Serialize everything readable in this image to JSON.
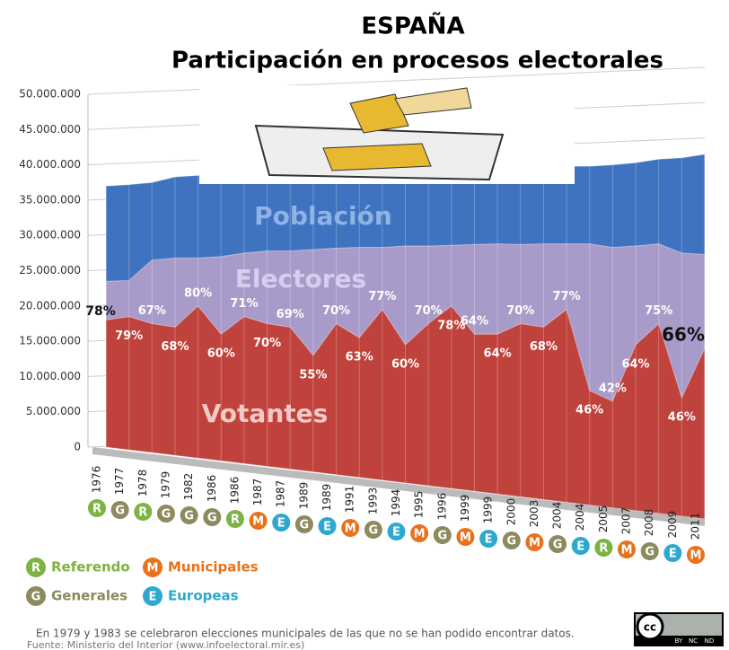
{
  "chart_data": {
    "type": "area",
    "title": "ESPAÑA",
    "subtitle": "Participación en procesos electorales",
    "categories": [
      "1976",
      "1977",
      "1978",
      "1979",
      "1982",
      "1986",
      "1986",
      "1987",
      "1987",
      "1989",
      "1989",
      "1991",
      "1993",
      "1994",
      "1995",
      "1996",
      "1999",
      "1999",
      "2000",
      "2003",
      "2004",
      "2004",
      "2005",
      "2007",
      "2008",
      "2009",
      "2011"
    ],
    "election_types": [
      "R",
      "G",
      "R",
      "G",
      "G",
      "G",
      "R",
      "M",
      "E",
      "G",
      "E",
      "M",
      "G",
      "E",
      "M",
      "G",
      "M",
      "E",
      "G",
      "M",
      "G",
      "E",
      "R",
      "M",
      "G",
      "E",
      "M"
    ],
    "series": [
      {
        "name": "Población",
        "color": "#3f73bf",
        "values": [
          37000000,
          37200000,
          37500000,
          38300000,
          38500000,
          38600000,
          38700000,
          38800000,
          38800000,
          38900000,
          39000000,
          39000000,
          39100000,
          39200000,
          39200000,
          39300000,
          39200000,
          39300000,
          39400000,
          39500000,
          39800000,
          39800000,
          40000000,
          40300000,
          40800000,
          41000000,
          41500000
        ]
      },
      {
        "name": "Electores",
        "color": "#a99bc9",
        "values": [
          23500000,
          23600000,
          26500000,
          26800000,
          26800000,
          27000000,
          27500000,
          27800000,
          27800000,
          28000000,
          28200000,
          28300000,
          28300000,
          28500000,
          28500000,
          28600000,
          28700000,
          28800000,
          28700000,
          28800000,
          28800000,
          28800000,
          28300000,
          28500000,
          28800000,
          27500000,
          27300000
        ]
      },
      {
        "name": "Votantes",
        "color": "#c0423c",
        "values": [
          18000000,
          18500000,
          17500000,
          17000000,
          20000000,
          16000000,
          18500000,
          17500000,
          17000000,
          13000000,
          17500000,
          15500000,
          19500000,
          14500000,
          17500000,
          20000000,
          16000000,
          16000000,
          17500000,
          17000000,
          19500000,
          8000000,
          6500000,
          14500000,
          17500000,
          7000000,
          14000000
        ]
      }
    ],
    "participation": {
      "values": [
        78,
        79,
        67,
        68,
        80,
        60,
        71,
        70,
        69,
        55,
        70,
        63,
        77,
        60,
        70,
        78,
        64,
        64,
        70,
        68,
        77,
        46,
        42,
        64,
        75,
        46,
        66
      ],
      "value_labels": [
        "78%",
        "79%",
        "67%",
        "68%",
        "80%",
        "60%",
        "71%",
        "70%",
        "69%",
        "55%",
        "70%",
        "63%",
        "77%",
        "60%",
        "70%",
        "78%",
        "64%",
        "64%",
        "70%",
        "68%",
        "77%",
        "46%",
        "42%",
        "64%",
        "75%",
        "46%",
        "66%"
      ]
    },
    "ylim": [
      0,
      50000000
    ],
    "yticks": [
      0,
      {
        "value": 5000000,
        "label": "5.000.000"
      },
      {
        "value": 10000000,
        "label": "10.000.000"
      },
      {
        "value": 15000000,
        "label": "15.000.000"
      },
      {
        "value": 20000000,
        "label": "20.000.000"
      },
      {
        "value": 25000000,
        "label": "25.000.000"
      },
      {
        "value": 30000000,
        "label": "30.000.000"
      },
      {
        "value": 35000000,
        "label": "35.000.000"
      },
      {
        "value": 40000000,
        "label": "40.000.000"
      },
      {
        "value": 45000000,
        "label": "45.000.000"
      },
      {
        "value": 50000000,
        "label": "50.000.000"
      }
    ],
    "grid": true,
    "legend": [
      {
        "letter": "R",
        "name": "Referendo",
        "color": "#7cb342"
      },
      {
        "letter": "M",
        "name": "Municipales",
        "color": "#e8711c"
      },
      {
        "letter": "G",
        "name": "Generales",
        "color": "#8c8a5e"
      },
      {
        "letter": "E",
        "name": "Europeas",
        "color": "#2ea8cf"
      }
    ],
    "note": "En 1979 y 1983 se celebraron elecciones municipales de las que no se han podido encontrar datos.",
    "source": "Fuente: Ministerio del Interior (www.infoelectoral.mir.es)",
    "license": {
      "symbol": "cc",
      "terms": [
        "BY",
        "NC",
        "ND"
      ]
    }
  }
}
